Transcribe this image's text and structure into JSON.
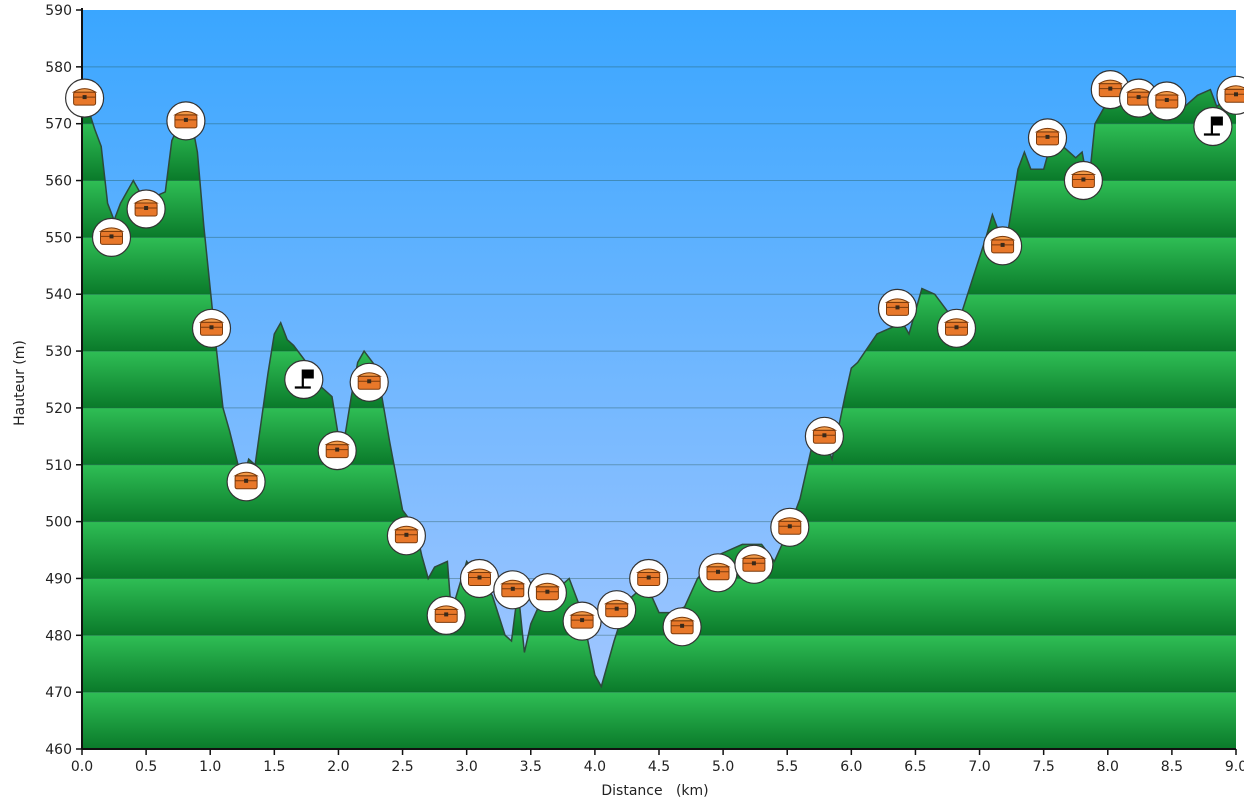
{
  "chart_data": {
    "type": "area",
    "title": "",
    "xlabel": "Distance   (km)",
    "ylabel": "Hauteur (m)",
    "xlim": [
      0,
      9.0
    ],
    "ylim": [
      460,
      590
    ],
    "x_ticks": [
      0.0,
      0.5,
      1.0,
      1.5,
      2.0,
      2.5,
      3.0,
      3.5,
      4.0,
      4.5,
      5.0,
      5.5,
      6.0,
      6.5,
      7.0,
      7.5,
      8.0,
      8.5,
      9.0
    ],
    "y_ticks": [
      460,
      470,
      480,
      490,
      500,
      510,
      520,
      530,
      540,
      550,
      560,
      570,
      580,
      590
    ],
    "grid": true,
    "colors": {
      "sky_top": "#3aa6ff",
      "sky_bottom": "#a9c9ff",
      "terrain_light": "#2fbe55",
      "terrain_dark": "#0a7a2a",
      "terrain_outline": "#2c4a3a",
      "marker_fill": "#ffffff",
      "marker_stroke": "#333333",
      "chest": "#e8782a"
    },
    "series": [
      {
        "points": [
          [
            0.0,
            576
          ],
          [
            0.1,
            569
          ],
          [
            0.15,
            566
          ],
          [
            0.2,
            556
          ],
          [
            0.25,
            553
          ],
          [
            0.3,
            556
          ],
          [
            0.4,
            560
          ],
          [
            0.45,
            558
          ],
          [
            0.55,
            557
          ],
          [
            0.65,
            558
          ],
          [
            0.7,
            567
          ],
          [
            0.8,
            572
          ],
          [
            0.85,
            571
          ],
          [
            0.9,
            565
          ],
          [
            0.95,
            552
          ],
          [
            1.0,
            541
          ],
          [
            1.05,
            530
          ],
          [
            1.1,
            520
          ],
          [
            1.15,
            516
          ],
          [
            1.25,
            507
          ],
          [
            1.3,
            511
          ],
          [
            1.35,
            510
          ],
          [
            1.45,
            526
          ],
          [
            1.5,
            533
          ],
          [
            1.55,
            535
          ],
          [
            1.6,
            532
          ],
          [
            1.65,
            531
          ],
          [
            1.75,
            528
          ],
          [
            1.85,
            524
          ],
          [
            1.95,
            522
          ],
          [
            2.0,
            515
          ],
          [
            2.05,
            515
          ],
          [
            2.1,
            522
          ],
          [
            2.15,
            528
          ],
          [
            2.2,
            530
          ],
          [
            2.3,
            527
          ],
          [
            2.4,
            514
          ],
          [
            2.5,
            502
          ],
          [
            2.6,
            499
          ],
          [
            2.65,
            494
          ],
          [
            2.7,
            490
          ],
          [
            2.75,
            492
          ],
          [
            2.85,
            493
          ],
          [
            2.88,
            484
          ],
          [
            2.92,
            487
          ],
          [
            3.0,
            493
          ],
          [
            3.1,
            490
          ],
          [
            3.2,
            487
          ],
          [
            3.3,
            480
          ],
          [
            3.35,
            479
          ],
          [
            3.4,
            488
          ],
          [
            3.45,
            477
          ],
          [
            3.5,
            482
          ],
          [
            3.6,
            487
          ],
          [
            3.7,
            488
          ],
          [
            3.8,
            490
          ],
          [
            3.9,
            484
          ],
          [
            4.0,
            473
          ],
          [
            4.05,
            471
          ],
          [
            4.15,
            479
          ],
          [
            4.25,
            486
          ],
          [
            4.4,
            489
          ],
          [
            4.5,
            484
          ],
          [
            4.6,
            484
          ],
          [
            4.7,
            485
          ],
          [
            4.8,
            490
          ],
          [
            4.95,
            494
          ],
          [
            5.05,
            495
          ],
          [
            5.15,
            496
          ],
          [
            5.3,
            496
          ],
          [
            5.4,
            493
          ],
          [
            5.5,
            498
          ],
          [
            5.6,
            504
          ],
          [
            5.7,
            514
          ],
          [
            5.8,
            514
          ],
          [
            5.85,
            511
          ],
          [
            5.95,
            522
          ],
          [
            6.0,
            527
          ],
          [
            6.05,
            528
          ],
          [
            6.2,
            533
          ],
          [
            6.3,
            534
          ],
          [
            6.4,
            535
          ],
          [
            6.45,
            533
          ],
          [
            6.55,
            541
          ],
          [
            6.65,
            540
          ],
          [
            6.75,
            537
          ],
          [
            6.85,
            536
          ],
          [
            6.95,
            543
          ],
          [
            7.05,
            550
          ],
          [
            7.1,
            554
          ],
          [
            7.2,
            548
          ],
          [
            7.3,
            562
          ],
          [
            7.35,
            565
          ],
          [
            7.4,
            562
          ],
          [
            7.5,
            562
          ],
          [
            7.55,
            566
          ],
          [
            7.6,
            565
          ],
          [
            7.65,
            566
          ],
          [
            7.75,
            564
          ],
          [
            7.8,
            565
          ],
          [
            7.85,
            559
          ],
          [
            7.9,
            570
          ],
          [
            8.0,
            574
          ],
          [
            8.1,
            575
          ],
          [
            8.2,
            574
          ],
          [
            8.3,
            573
          ],
          [
            8.4,
            574
          ],
          [
            8.5,
            572
          ],
          [
            8.6,
            573
          ],
          [
            8.7,
            575
          ],
          [
            8.8,
            576
          ],
          [
            8.85,
            573
          ],
          [
            8.9,
            574
          ],
          [
            9.0,
            576
          ]
        ]
      }
    ],
    "markers": [
      {
        "icon": "treasure-chest-icon",
        "x": 0.02,
        "y": 574.5
      },
      {
        "icon": "treasure-chest-icon",
        "x": 0.23,
        "y": 550.0
      },
      {
        "icon": "treasure-chest-icon",
        "x": 0.5,
        "y": 555.0
      },
      {
        "icon": "treasure-chest-icon",
        "x": 0.81,
        "y": 570.5
      },
      {
        "icon": "treasure-chest-icon",
        "x": 1.01,
        "y": 534.0
      },
      {
        "icon": "treasure-chest-icon",
        "x": 1.28,
        "y": 507.0
      },
      {
        "icon": "flag-icon",
        "x": 1.73,
        "y": 525.0
      },
      {
        "icon": "treasure-chest-icon",
        "x": 1.99,
        "y": 512.5
      },
      {
        "icon": "treasure-chest-icon",
        "x": 2.24,
        "y": 524.5
      },
      {
        "icon": "treasure-chest-icon",
        "x": 2.53,
        "y": 497.5
      },
      {
        "icon": "treasure-chest-icon",
        "x": 2.84,
        "y": 483.5
      },
      {
        "icon": "treasure-chest-icon",
        "x": 3.1,
        "y": 490.0
      },
      {
        "icon": "treasure-chest-icon",
        "x": 3.36,
        "y": 488.0
      },
      {
        "icon": "treasure-chest-icon",
        "x": 3.63,
        "y": 487.5
      },
      {
        "icon": "treasure-chest-icon",
        "x": 3.9,
        "y": 482.5
      },
      {
        "icon": "treasure-chest-icon",
        "x": 4.17,
        "y": 484.5
      },
      {
        "icon": "treasure-chest-icon",
        "x": 4.42,
        "y": 490.0
      },
      {
        "icon": "treasure-chest-icon",
        "x": 4.68,
        "y": 481.5
      },
      {
        "icon": "treasure-chest-icon",
        "x": 4.96,
        "y": 491.0
      },
      {
        "icon": "treasure-chest-icon",
        "x": 5.24,
        "y": 492.5
      },
      {
        "icon": "treasure-chest-icon",
        "x": 5.52,
        "y": 499.0
      },
      {
        "icon": "treasure-chest-icon",
        "x": 5.79,
        "y": 515.0
      },
      {
        "icon": "treasure-chest-icon",
        "x": 6.36,
        "y": 537.5
      },
      {
        "icon": "treasure-chest-icon",
        "x": 6.82,
        "y": 534.0
      },
      {
        "icon": "treasure-chest-icon",
        "x": 7.18,
        "y": 548.5
      },
      {
        "icon": "treasure-chest-icon",
        "x": 7.53,
        "y": 567.5
      },
      {
        "icon": "treasure-chest-icon",
        "x": 7.81,
        "y": 560.0
      },
      {
        "icon": "treasure-chest-icon",
        "x": 8.02,
        "y": 576.0
      },
      {
        "icon": "treasure-chest-icon",
        "x": 8.24,
        "y": 574.5
      },
      {
        "icon": "treasure-chest-icon",
        "x": 8.46,
        "y": 574.0
      },
      {
        "icon": "flag-icon",
        "x": 8.82,
        "y": 569.5
      },
      {
        "icon": "treasure-chest-icon",
        "x": 9.0,
        "y": 575.0
      }
    ]
  }
}
